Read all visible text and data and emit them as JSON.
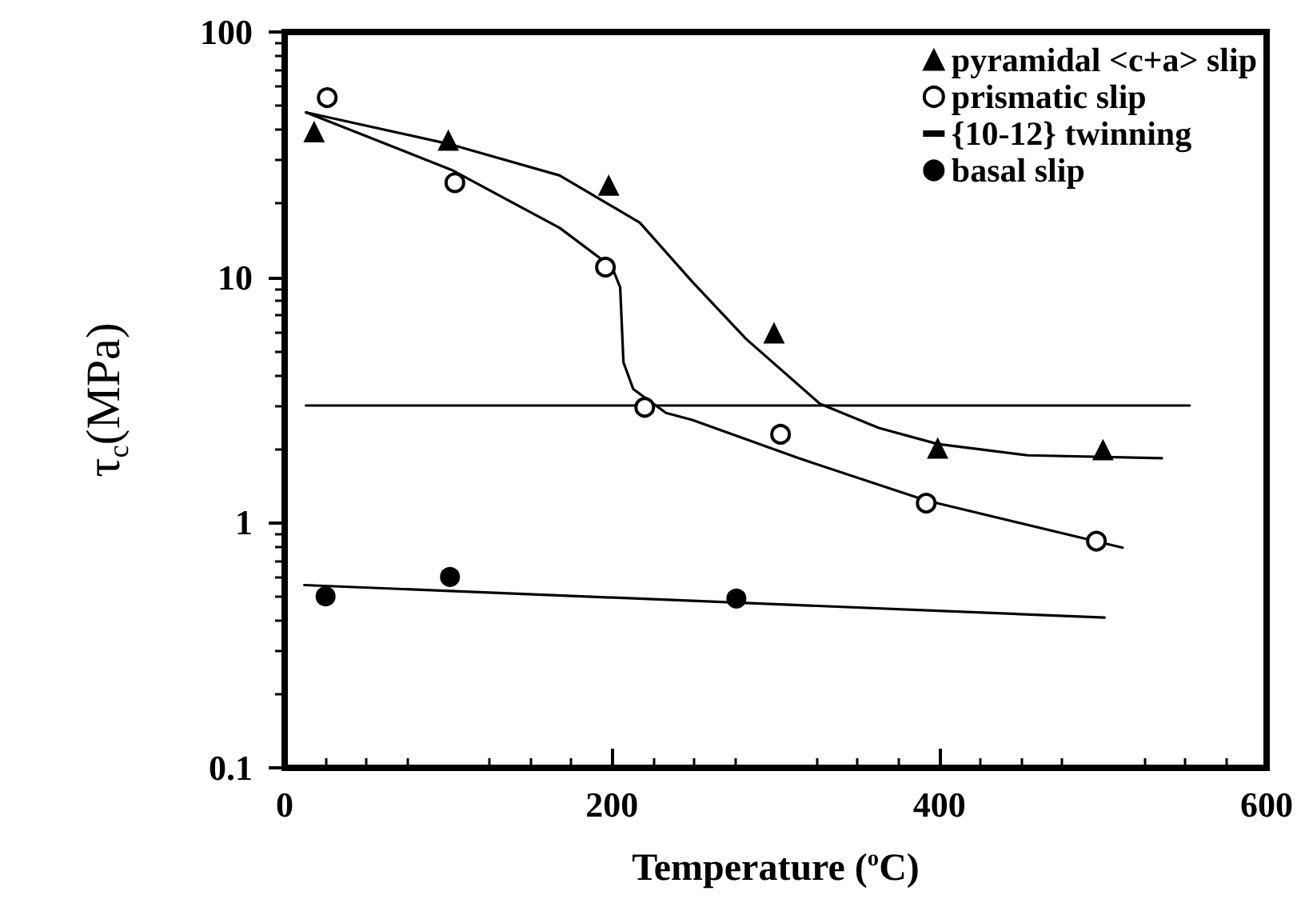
{
  "chart_data": {
    "type": "scatter",
    "xlabel": "Temperature ($^{o}$C)",
    "ylabel": "τ$_{c}$(MPa)",
    "log": "y",
    "xlim": [
      0,
      600
    ],
    "xticks": [
      0,
      200,
      400,
      600
    ],
    "ylim": [
      0.1,
      100
    ],
    "yticks": [
      0.1,
      1,
      10,
      100
    ],
    "grid": false,
    "legend": "top right",
    "series": [
      {
        "name": "pyramidal <c+a> slip",
        "marker": "triangle",
        "color": "#000000",
        "x": [
          18,
          100,
          198,
          299,
          399,
          500
        ],
        "values": [
          39,
          36,
          23.6,
          5.9,
          2.0,
          1.97
        ]
      },
      {
        "name": "prismatic slip",
        "marker": "circle",
        "color": "#000000",
        "x": [
          26,
          104,
          196,
          220,
          303,
          392,
          496
        ],
        "values": [
          54,
          24.3,
          11,
          2.95,
          2.29,
          1.2,
          0.84
        ]
      },
      {
        "name": "{10-12} twinning",
        "type": "line",
        "marker": "none",
        "color": "#000000",
        "x": [
          13,
          553
        ],
        "values": [
          3,
          3
        ]
      },
      {
        "name": "basal slip",
        "marker": "circle",
        "color": "#000000",
        "x": [
          25,
          101,
          276
        ],
        "values": [
          0.5,
          0.6,
          0.49
        ]
      },
      {
        "type": "line",
        "marker": "none",
        "color": "#000000",
        "x": [
          13,
          100,
          168,
          217,
          249,
          282,
          327,
          363,
          399,
          454,
          536
        ],
        "values": [
          47,
          35,
          26,
          16.7,
          9.6,
          5.6,
          3.05,
          2.43,
          2.09,
          1.88,
          1.83
        ]
      },
      {
        "type": "line",
        "marker": "none",
        "color": "#000000",
        "x": [
          13,
          102,
          168,
          200,
          205,
          207,
          213,
          233,
          249,
          314,
          392,
          512
        ],
        "values": [
          47,
          27.4,
          15.9,
          11,
          9.1,
          4.5,
          3.5,
          2.8,
          2.62,
          1.83,
          1.23,
          0.79
        ]
      },
      {
        "type": "line",
        "marker": "none",
        "color": "#000000",
        "x": [
          12,
          501
        ],
        "values": [
          0.556,
          0.41
        ]
      }
    ]
  }
}
